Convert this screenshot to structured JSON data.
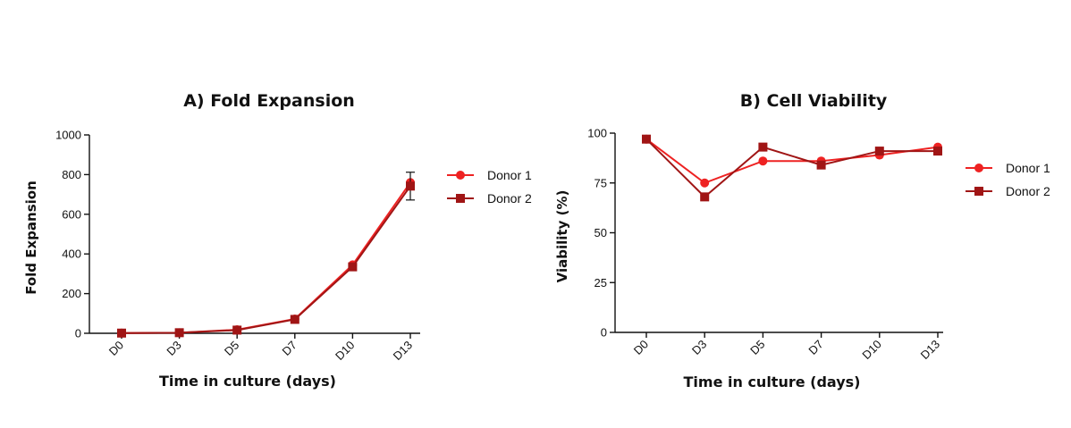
{
  "colors": {
    "donor1": "#ee2222",
    "donor2": "#a01515",
    "axis": "#111111"
  },
  "chart_data": [
    {
      "type": "line",
      "title": "A)   Fold Expansion",
      "xlabel": "Time in culture (days)",
      "ylabel": "Fold Expansion",
      "categories": [
        "D0",
        "D3",
        "D5",
        "D7",
        "D10",
        "D13"
      ],
      "ylim": [
        0,
        1000
      ],
      "yticks": [
        0,
        200,
        400,
        600,
        800,
        1000
      ],
      "legend_position": "right",
      "series": [
        {
          "name": "Donor 1",
          "marker": "circle",
          "values": [
            1,
            3,
            18,
            72,
            345,
            760
          ]
        },
        {
          "name": "Donor 2",
          "marker": "square",
          "values": [
            1,
            3,
            16,
            70,
            335,
            742
          ],
          "error": [
            0,
            0,
            0,
            0,
            0,
            70
          ]
        }
      ]
    },
    {
      "type": "line",
      "title": "B)   Cell Viability",
      "xlabel": "Time in culture (days)",
      "ylabel": "Viability (%)",
      "categories": [
        "D0",
        "D3",
        "D5",
        "D7",
        "D10",
        "D13"
      ],
      "ylim": [
        0,
        100
      ],
      "yticks": [
        0,
        25,
        50,
        75,
        100
      ],
      "legend_position": "right",
      "series": [
        {
          "name": "Donor 1",
          "marker": "circle",
          "values": [
            97,
            75,
            86,
            86,
            89,
            93
          ]
        },
        {
          "name": "Donor 2",
          "marker": "square",
          "values": [
            97,
            68,
            93,
            84,
            91,
            91
          ]
        }
      ]
    }
  ]
}
